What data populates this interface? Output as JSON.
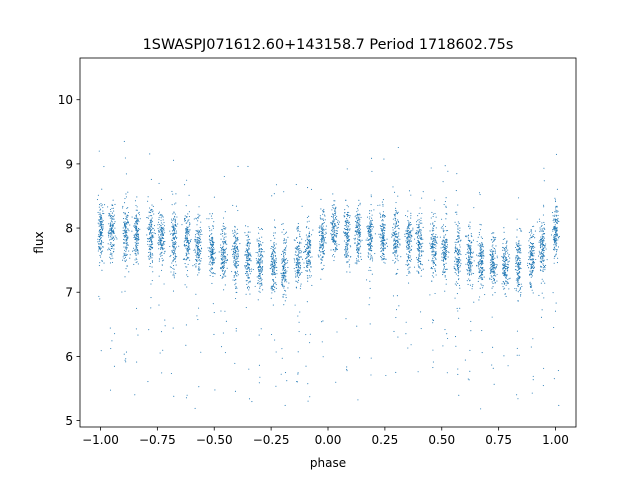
{
  "chart_data": {
    "type": "scatter",
    "title": "1SWASPJ071612.60+143158.7 Period 1718602.75s",
    "xlabel": "phase",
    "ylabel": "flux",
    "xlim": [
      -1.09,
      1.09
    ],
    "ylim": [
      4.9,
      10.65
    ],
    "xticks": [
      -1.0,
      -0.75,
      -0.5,
      -0.25,
      0.0,
      0.25,
      0.5,
      0.75,
      1.0
    ],
    "xtick_labels": [
      "−1.00",
      "−0.75",
      "−0.50",
      "−0.25",
      "0.00",
      "0.25",
      "0.50",
      "0.75",
      "1.00"
    ],
    "yticks": [
      5,
      6,
      7,
      8,
      9,
      10
    ],
    "ytick_labels": [
      "5",
      "6",
      "7",
      "8",
      "9",
      "10"
    ],
    "grid": false,
    "point_color": "#1f77b4",
    "series": [
      {
        "points_approx": [
          {
            "x": -1.0,
            "y": 7.95
          },
          {
            "x": -0.9,
            "y": 7.9
          },
          {
            "x": -0.8,
            "y": 7.9
          },
          {
            "x": -0.7,
            "y": 7.85
          },
          {
            "x": -0.6,
            "y": 7.75
          },
          {
            "x": -0.5,
            "y": 7.65
          },
          {
            "x": -0.4,
            "y": 7.55
          },
          {
            "x": -0.3,
            "y": 7.45
          },
          {
            "x": -0.2,
            "y": 7.4
          },
          {
            "x": -0.1,
            "y": 7.55
          },
          {
            "x": 0.0,
            "y": 7.95
          },
          {
            "x": 0.1,
            "y": 7.9
          },
          {
            "x": 0.2,
            "y": 7.9
          },
          {
            "x": 0.3,
            "y": 7.85
          },
          {
            "x": 0.4,
            "y": 7.75
          },
          {
            "x": 0.5,
            "y": 7.65
          },
          {
            "x": 0.6,
            "y": 7.55
          },
          {
            "x": 0.7,
            "y": 7.45
          },
          {
            "x": 0.8,
            "y": 7.4
          },
          {
            "x": 0.9,
            "y": 7.55
          },
          {
            "x": 1.0,
            "y": 7.95
          }
        ]
      }
    ]
  }
}
